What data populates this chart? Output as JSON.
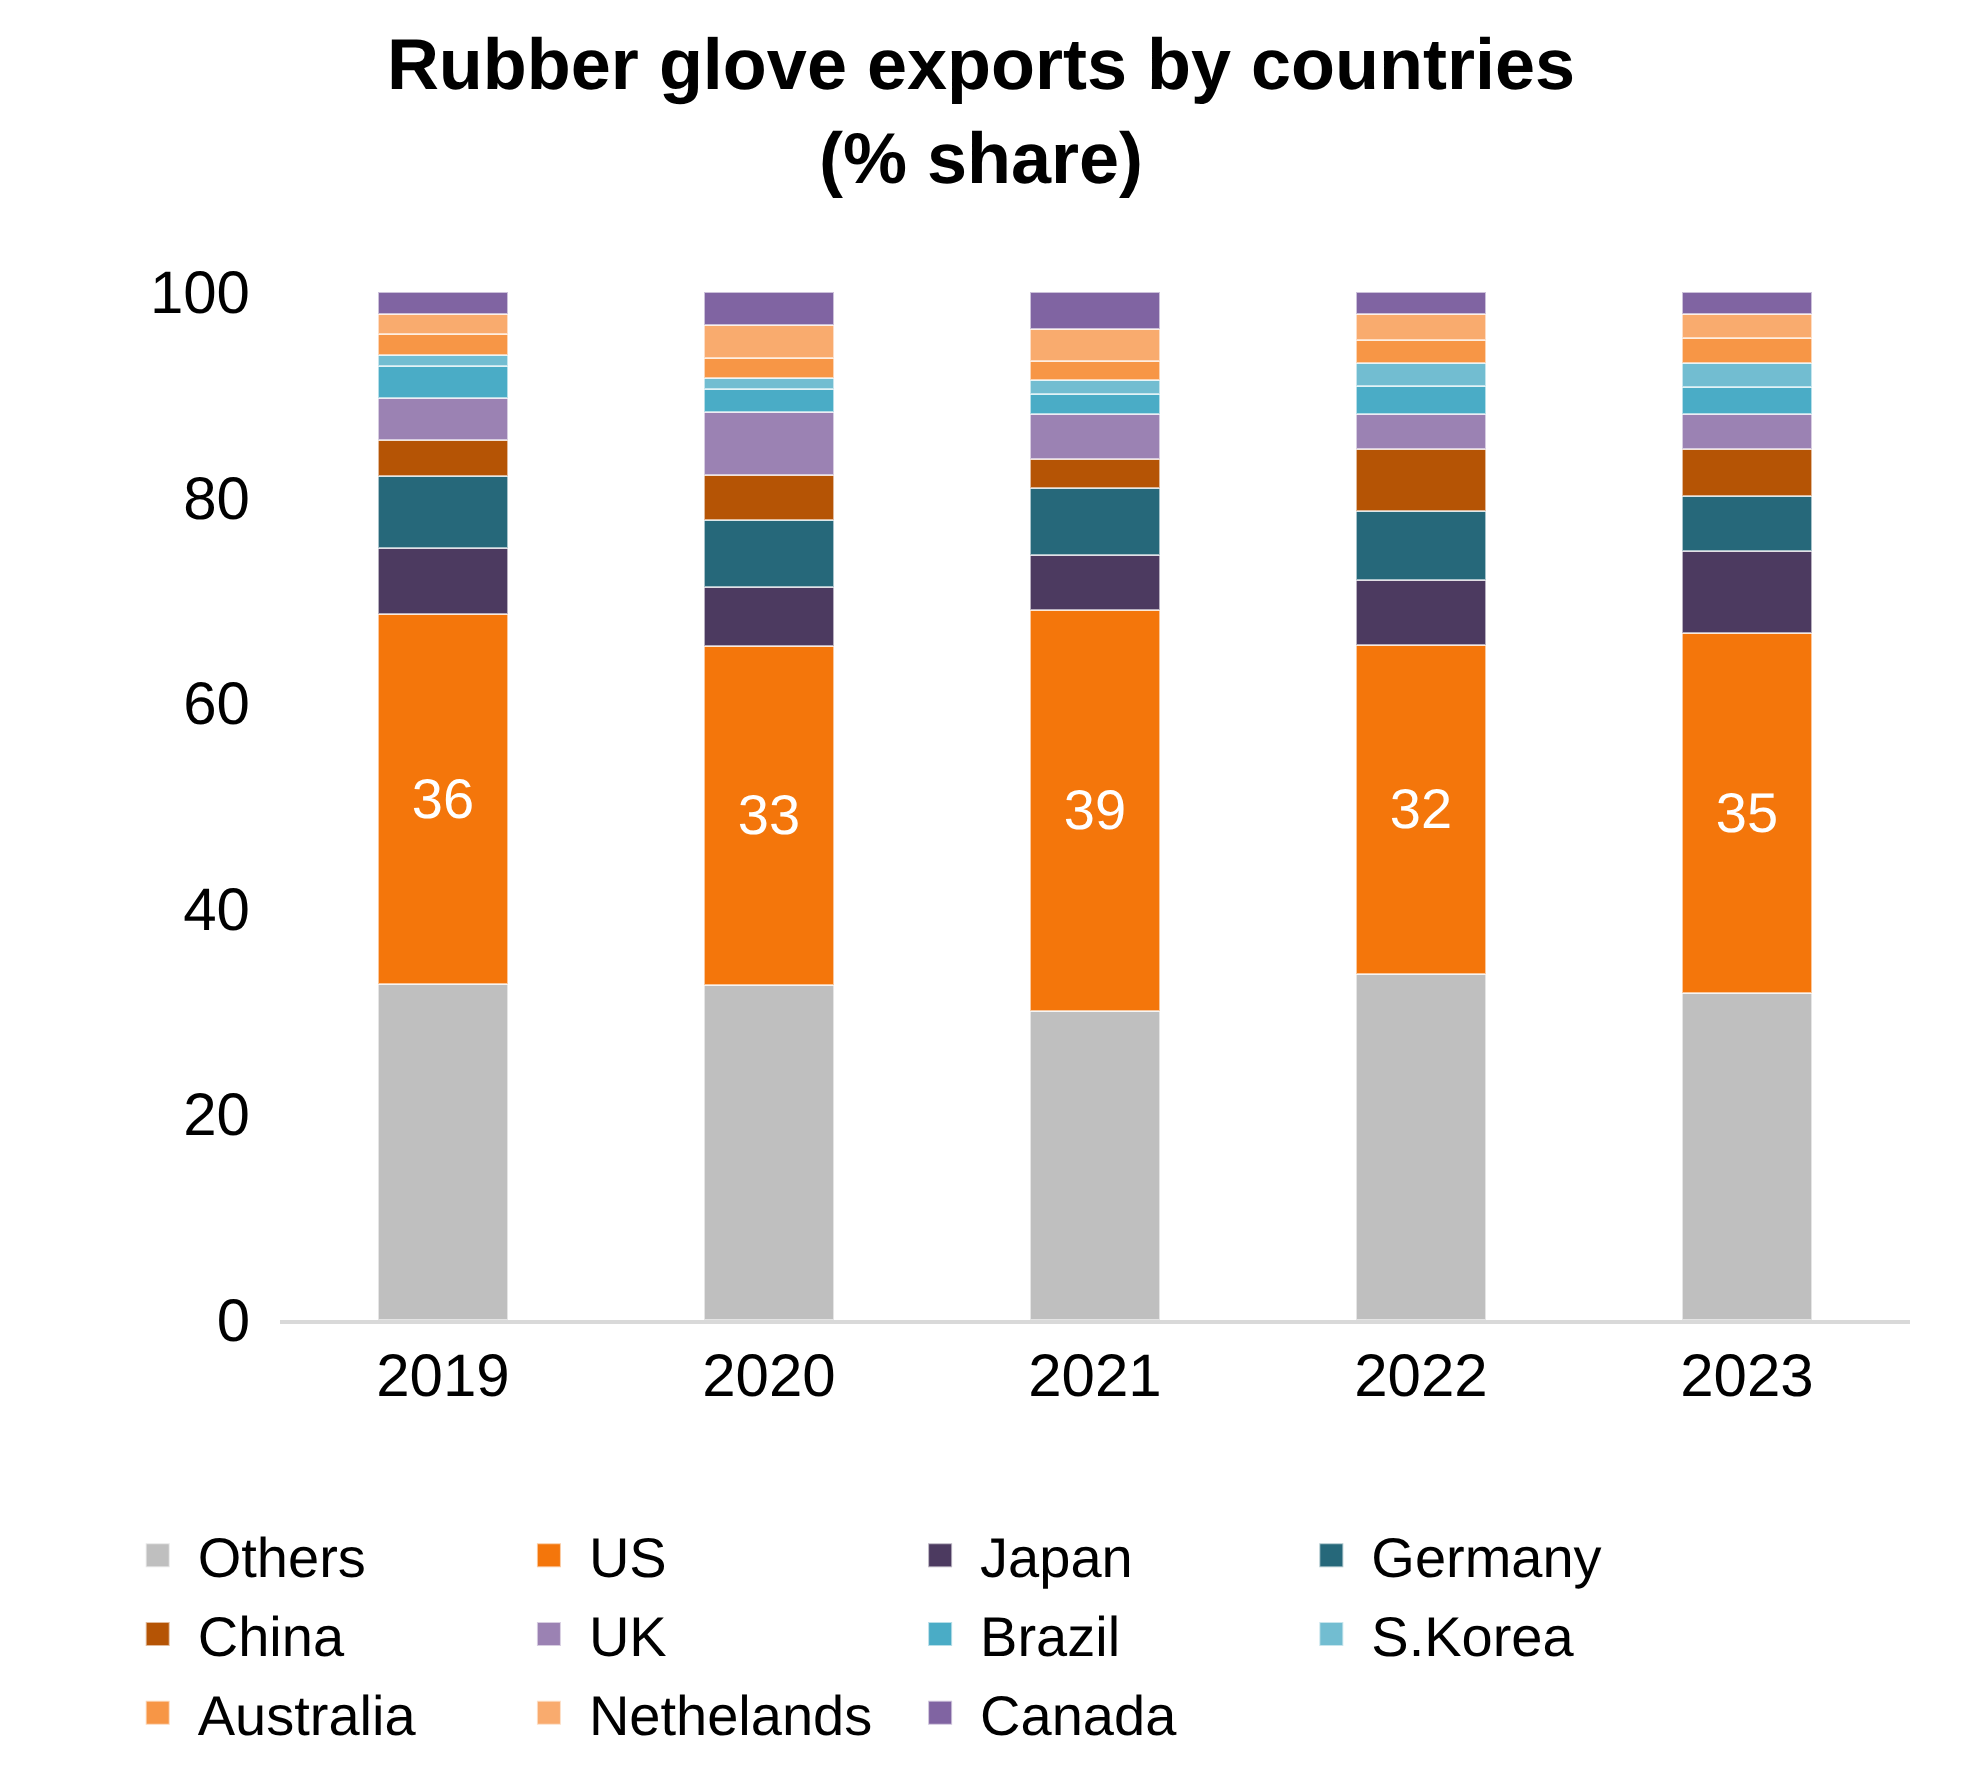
{
  "chart_data": {
    "type": "bar",
    "stacked": true,
    "title": "Rubber glove exports by countries\n(% share)",
    "categories": [
      "2019",
      "2020",
      "2021",
      "2022",
      "2023"
    ],
    "ylim": [
      0,
      100
    ],
    "yticks": [
      0,
      20,
      40,
      60,
      80,
      100
    ],
    "grid": false,
    "legend": "bottom",
    "series": [
      {
        "name": "Others",
        "color": "#bfbfbf",
        "values": [
          32.7,
          32.6,
          30.1,
          33.7,
          31.8
        ]
      },
      {
        "name": "US",
        "color": "#f4760b",
        "values": [
          36,
          33,
          39,
          32,
          35
        ],
        "value_labels": [
          "36",
          "33",
          "39",
          "32",
          "35"
        ]
      },
      {
        "name": "Japan",
        "color": "#4c3a60",
        "values": [
          6.4,
          5.7,
          5.3,
          6.3,
          8.0
        ]
      },
      {
        "name": "Germany",
        "color": "#26687a",
        "values": [
          7.0,
          6.5,
          6.5,
          6.7,
          5.4
        ]
      },
      {
        "name": "China",
        "color": "#b55405",
        "values": [
          3.5,
          4.4,
          2.9,
          6.0,
          4.5
        ]
      },
      {
        "name": "UK",
        "color": "#9b82b3",
        "values": [
          4.1,
          6.1,
          4.3,
          3.4,
          3.4
        ]
      },
      {
        "name": "Brazil",
        "color": "#4aacc6",
        "values": [
          3.1,
          2.3,
          2.0,
          2.8,
          2.7
        ]
      },
      {
        "name": "S.Korea",
        "color": "#72bdd1",
        "values": [
          1.1,
          1.0,
          1.3,
          2.2,
          2.3
        ]
      },
      {
        "name": "Australia",
        "color": "#f79646",
        "values": [
          2.0,
          2.0,
          1.9,
          2.2,
          2.4
        ]
      },
      {
        "name": "Nethelands",
        "color": "#f9ab6e",
        "values": [
          2.0,
          3.2,
          3.1,
          2.6,
          2.4
        ]
      },
      {
        "name": "Canada",
        "color": "#8064a2",
        "values": [
          2.1,
          3.2,
          3.6,
          2.1,
          2.1
        ]
      }
    ]
  }
}
